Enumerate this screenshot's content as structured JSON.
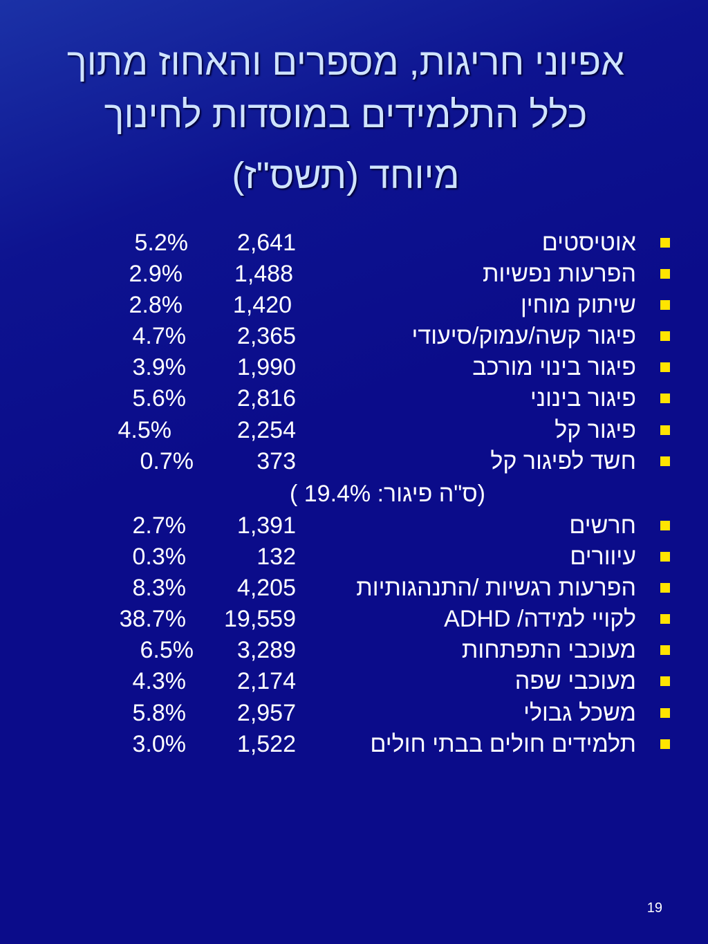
{
  "slide": {
    "title_lines": [
      "אפיוני חריגות, מספרים והאחוז מתוך",
      "כלל  התלמידים במוסדות לחינוך",
      "מיוחד (תשס\"ז)"
    ],
    "rows": [
      {
        "label": "אוטיסטים",
        "count": "2,641",
        "percent": "5.2%"
      },
      {
        "label": "הפרעות נפשיות",
        "count": "1,488",
        "percent": "2.9%"
      },
      {
        "label": "שיתוק מוחין",
        "count": "1,420",
        "percent": "2.8%"
      },
      {
        "label": "פיגור  קשה/עמוק/סיעודי",
        "count": "2,365",
        "percent": "4.7%"
      },
      {
        "label": "פיגור בינוי מורכב",
        "count": "1,990",
        "percent": "3.9%"
      },
      {
        "label": "פיגור בינוני",
        "count": "2,816",
        "percent": "5.6%"
      },
      {
        "label": "פיגור קל",
        "count": "2,254",
        "percent": "4.5%"
      },
      {
        "label": "חשד לפיגור קל",
        "count": "373",
        "percent": "0.7%"
      }
    ],
    "summary": "(ס\"ה פיגור: 19.4% )",
    "rows2": [
      {
        "label": "חרשים",
        "count": "1,391",
        "percent": "2.7%"
      },
      {
        "label": "עיוורים",
        "count": "132",
        "percent": "0.3%"
      },
      {
        "label": "הפרעות רגשיות /התנהגותיות",
        "count": "4,205",
        "percent": "8.3%"
      },
      {
        "label": "לקויי למידה/ ADHD",
        "count": "19,559",
        "percent": "38.7%"
      },
      {
        "label": "מעוכבי התפתחות",
        "count": "3,289",
        "percent": "6.5%"
      },
      {
        "label": "מעוכבי שפה",
        "count": "2,174",
        "percent": "4.3%"
      },
      {
        "label": "משכל גבולי",
        "count": "2,957",
        "percent": "5.8%"
      },
      {
        "label": "תלמידים חולים בבתי חולים",
        "count": "1,522",
        "percent": "3.0%"
      }
    ],
    "page_number": "19",
    "colors": {
      "background": "#0b0c8a",
      "title": "#cfe3ff",
      "text": "#ffffff",
      "bullet": "#ffe400"
    }
  }
}
